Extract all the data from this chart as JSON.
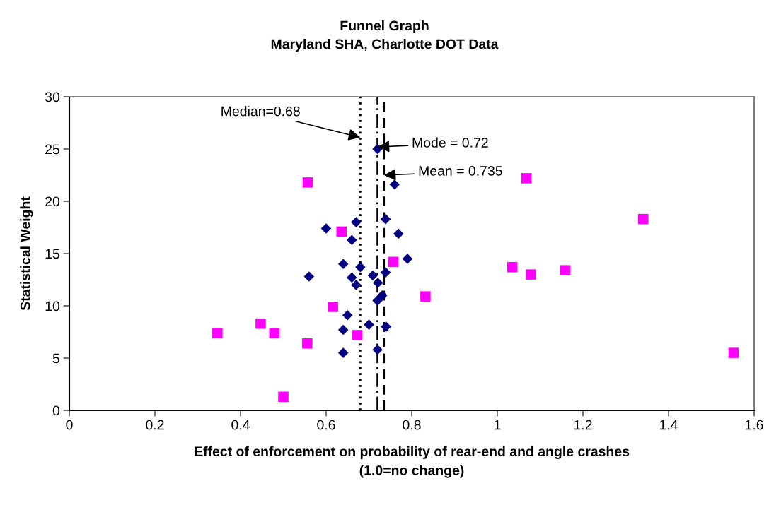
{
  "chart_data": {
    "type": "scatter",
    "title": "Funnel Graph",
    "subtitle": "Maryland SHA, Charlotte DOT Data",
    "xlabel": "Effect of enforcement on probability of rear-end and angle crashes\n(1.0=no change)",
    "ylabel": "Statistical Weight",
    "xlim": [
      0,
      1.6
    ],
    "xticks": [
      0,
      0.2,
      0.4,
      0.6,
      0.8,
      1,
      1.2,
      1.4,
      1.6
    ],
    "ylim": [
      0,
      30
    ],
    "yticks": [
      0,
      5,
      10,
      15,
      20,
      25,
      30
    ],
    "grid": false,
    "legend": false,
    "series": [
      {
        "color": "#000080",
        "marker": "diamond",
        "x": [
          0.72,
          0.76,
          0.739,
          0.67,
          0.6,
          0.769,
          0.66,
          0.79,
          0.64,
          0.68,
          0.56,
          0.739,
          0.66,
          0.709,
          0.67,
          0.721,
          0.731,
          0.72,
          null,
          0.65,
          0.7,
          0.64,
          0.74,
          0.72,
          0.64
        ],
        "values": [
          25,
          21.6,
          18.3,
          18,
          17.4,
          16.9,
          16.3,
          14.5,
          14,
          13.7,
          12.8,
          13.2,
          12.7,
          12.9,
          12,
          12.2,
          11,
          10.5,
          null,
          9.1,
          8.2,
          7.7,
          8,
          5.8,
          5.5
        ]
      },
      {
        "color": "#ff00ff",
        "marker": "square",
        "x": [
          0.557,
          0.636,
          0.757,
          0.832,
          0.616,
          0.447,
          0.346,
          0.479,
          0.556,
          0.673,
          0.5,
          1.068,
          1.035,
          1.078,
          1.159,
          1.341,
          1.552
        ],
        "values": [
          21.8,
          17.1,
          14.2,
          10.9,
          9.9,
          8.3,
          7.4,
          7.4,
          6.4,
          7.2,
          1.3,
          22.2,
          13.7,
          13,
          13.4,
          18.3,
          5.5
        ]
      }
    ],
    "ref_lines": [
      {
        "axis": "x",
        "value": 0.68,
        "label": "Median=0.68",
        "line_style": "dotted",
        "color": "#000000"
      },
      {
        "axis": "x",
        "value": 0.72,
        "label": "Mode = 0.72",
        "line_style": "dashdot",
        "color": "#000000"
      },
      {
        "axis": "x",
        "value": 0.735,
        "label": "Mean = 0.735",
        "line_style": "dashed",
        "color": "#000000"
      }
    ]
  }
}
